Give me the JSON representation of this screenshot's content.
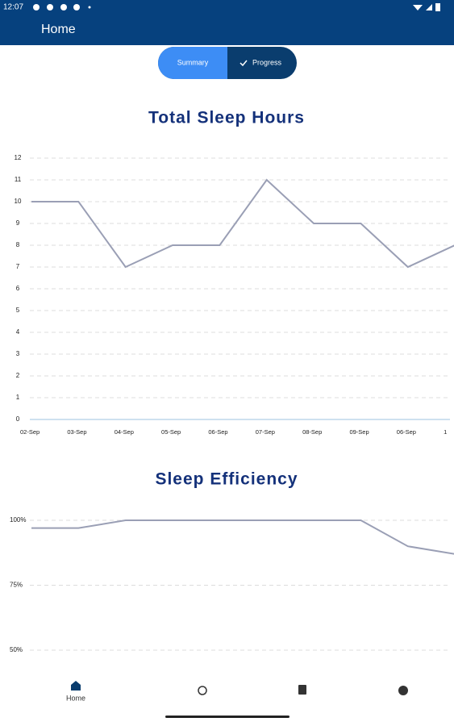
{
  "status_bar": {
    "time": "12:07"
  },
  "app_bar": {
    "title": "Home"
  },
  "tabs": [
    "Summary",
    "Progress"
  ],
  "chart_data": [
    {
      "type": "line",
      "title": "Total Sleep Hours",
      "categories": [
        "02-Sep",
        "03-Sep",
        "04-Sep",
        "05-Sep",
        "06-Sep",
        "07-Sep",
        "08-Sep",
        "09-Sep",
        "06-Sep",
        "1"
      ],
      "values": [
        10,
        10,
        7,
        8,
        8,
        11,
        9,
        9,
        7,
        8
      ],
      "color": "#9a9fb5",
      "ylim": [
        0,
        12
      ],
      "yticks": [
        0,
        1,
        2,
        3,
        4,
        5,
        6,
        7,
        8,
        9,
        10,
        11,
        12
      ],
      "grid": true
    },
    {
      "type": "line",
      "title": "Sleep Efficiency",
      "values": [
        97,
        97,
        100,
        100,
        100,
        100,
        100,
        100,
        90,
        87
      ],
      "color": "#9a9fb5",
      "ylim": [
        50,
        100
      ],
      "yticks": [
        {
          "value": 100,
          "label": "100%"
        },
        {
          "value": 75,
          "label": "75%"
        },
        {
          "value": 50,
          "label": "50%"
        }
      ],
      "grid": true
    }
  ],
  "nav": {
    "items": [
      "Home"
    ]
  }
}
